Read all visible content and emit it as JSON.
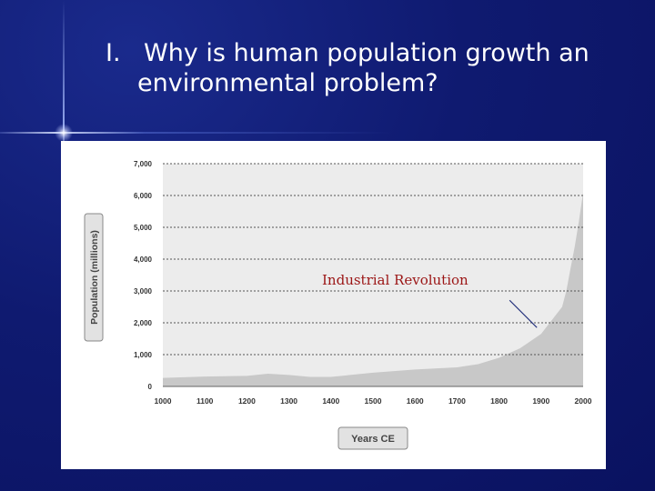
{
  "slide": {
    "marker": "I.",
    "title_line1": "Why is human population growth an",
    "title_line2": "environmental problem?"
  },
  "colors": {
    "background": "#0f1a70",
    "area_fill": "#c8c8c8",
    "annotation": "#9b1515"
  },
  "chart_data": {
    "type": "area",
    "title": "",
    "xlabel": "Years CE",
    "ylabel": "Population (millions)",
    "xticks": [
      "1000",
      "1100",
      "1200",
      "1300",
      "1400",
      "1500",
      "1600",
      "1700",
      "1800",
      "1900",
      "2000"
    ],
    "yticks": [
      "0",
      "1,000",
      "2,000",
      "3,000",
      "4,000",
      "5,000",
      "6,000",
      "7,000"
    ],
    "xlim": [
      1000,
      2000
    ],
    "ylim": [
      0,
      7000
    ],
    "grid": true,
    "x": [
      1000,
      1100,
      1200,
      1250,
      1300,
      1350,
      1400,
      1500,
      1600,
      1700,
      1750,
      1800,
      1850,
      1900,
      1950,
      1960,
      1970,
      1980,
      1990,
      2000
    ],
    "y": [
      270,
      310,
      330,
      400,
      360,
      300,
      300,
      430,
      530,
      600,
      700,
      900,
      1200,
      1650,
      2500,
      3000,
      3700,
      4400,
      5200,
      6100
    ],
    "annotations": [
      {
        "text": "Industrial Revolution",
        "arrow_to": [
          1890,
          1850
        ]
      }
    ]
  }
}
